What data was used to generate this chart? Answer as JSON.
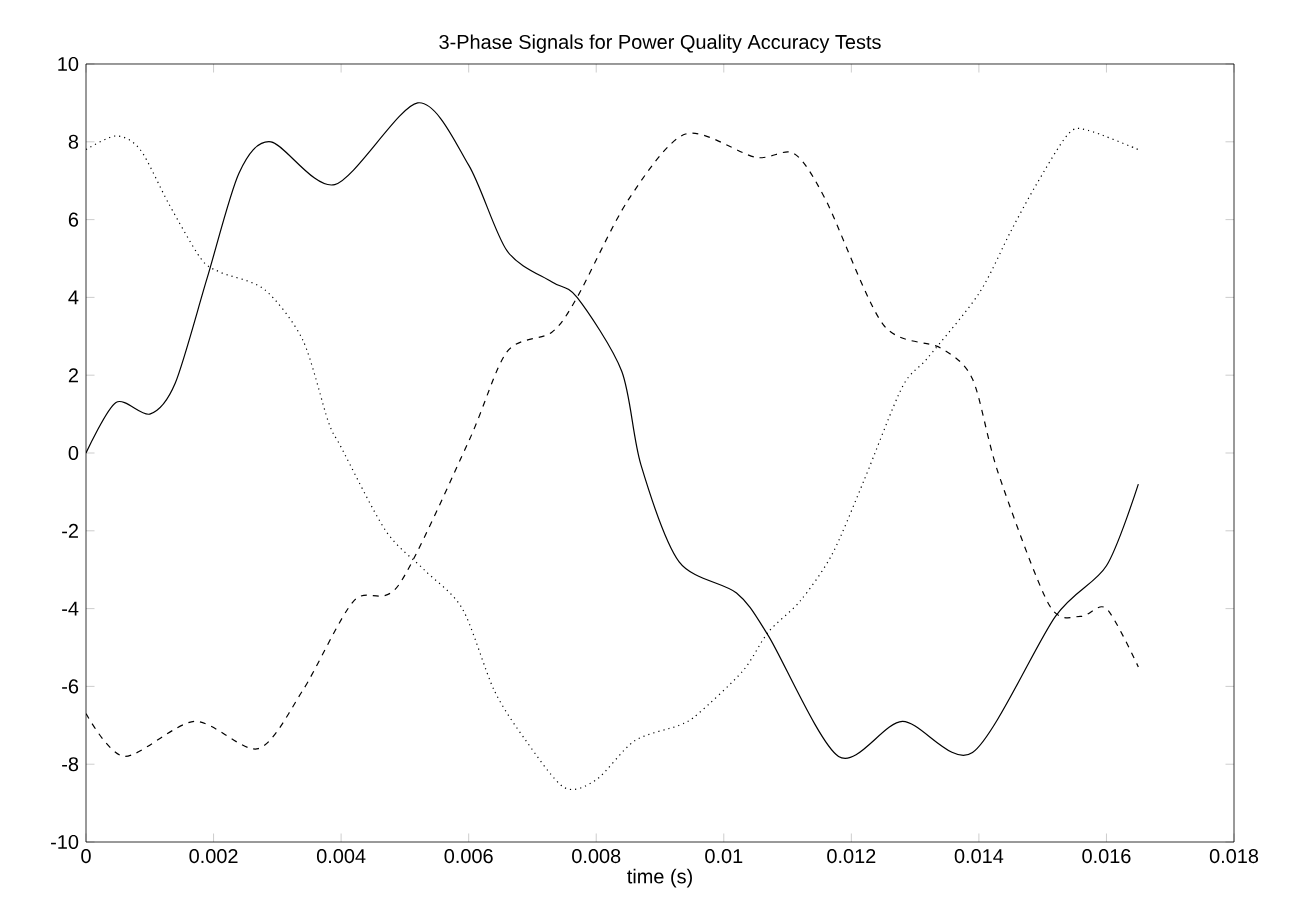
{
  "chart_data": {
    "type": "line",
    "title": "3-Phase Signals for Power Quality Accuracy Tests",
    "xlabel": "time (s)",
    "xlim": [
      0,
      0.018
    ],
    "ylim": [
      -10,
      10
    ],
    "xticks": [
      0,
      0.002,
      0.004,
      0.006,
      0.008,
      0.01,
      0.012,
      0.014,
      0.016,
      0.018
    ],
    "yticks": [
      -10,
      -8,
      -6,
      -4,
      -2,
      0,
      2,
      4,
      6,
      8,
      10
    ],
    "marker": "none",
    "series": [
      {
        "color": "#000000",
        "line_style": "solid",
        "x": [
          0,
          0.00047,
          0.001,
          0.0014,
          0.0019,
          0.0024,
          0.0029,
          0.0039,
          0.0052,
          0.006,
          0.0066,
          0.0073,
          0.0077,
          0.0084,
          0.0087,
          0.0093,
          0.0102,
          0.0107,
          0.0118,
          0.0128,
          0.0139,
          0.0152,
          0.016,
          0.0165
        ],
        "values": [
          0,
          1.3,
          1.0,
          1.8,
          4.5,
          7.2,
          8.0,
          6.9,
          9.0,
          7.4,
          5.2,
          4.4,
          4.0,
          2.1,
          -0.3,
          -2.8,
          -3.6,
          -4.7,
          -7.8,
          -6.9,
          -7.7,
          -4.2,
          -2.9,
          -0.8
        ]
      },
      {
        "color": "#000000",
        "line_style": "dashed",
        "x": [
          0,
          0.0006,
          0.0017,
          0.0027,
          0.0034,
          0.0042,
          0.0049,
          0.006,
          0.0066,
          0.0073,
          0.0077,
          0.0085,
          0.0094,
          0.0105,
          0.0111,
          0.0116,
          0.0125,
          0.0134,
          0.0139,
          0.0143,
          0.0151,
          0.0156,
          0.016,
          0.0165
        ],
        "values": [
          -6.7,
          -7.8,
          -6.9,
          -7.6,
          -6.1,
          -3.8,
          -3.4,
          0.3,
          2.6,
          3.1,
          4.0,
          6.5,
          8.2,
          7.6,
          7.7,
          6.5,
          3.3,
          2.7,
          1.9,
          -0.5,
          -3.9,
          -4.2,
          -4.0,
          -5.5
        ]
      },
      {
        "color": "#000000",
        "line_style": "dotted",
        "x": [
          0,
          0.00047,
          0.00085,
          0.0013,
          0.0018,
          0.0021,
          0.0028,
          0.0034,
          0.0038,
          0.004,
          0.0047,
          0.0053,
          0.0059,
          0.0064,
          0.0069,
          0.0075,
          0.008,
          0.0086,
          0.0093,
          0.0096,
          0.0103,
          0.0107,
          0.0112,
          0.0117,
          0.0122,
          0.0128,
          0.0132,
          0.014,
          0.0145,
          0.0149,
          0.0154,
          0.0157,
          0.0165
        ],
        "values": [
          7.8,
          8.15,
          7.8,
          6.4,
          5.0,
          4.65,
          4.2,
          2.9,
          0.8,
          0.15,
          -2.0,
          -3.0,
          -4.0,
          -6.1,
          -7.4,
          -8.6,
          -8.4,
          -7.4,
          -7.0,
          -6.7,
          -5.6,
          -4.6,
          -3.8,
          -2.6,
          -0.7,
          1.7,
          2.45,
          4.1,
          5.7,
          6.9,
          8.2,
          8.3,
          7.8
        ]
      }
    ]
  }
}
